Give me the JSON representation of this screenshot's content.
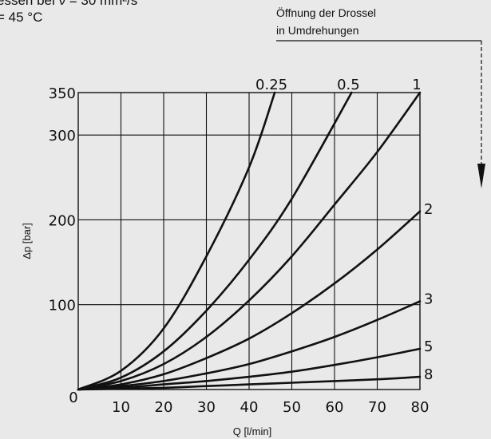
{
  "header": {
    "line1": "essen bei ν = 30 mm²/s",
    "line2": "= 45 °C"
  },
  "annotation": {
    "line1": "Öffnung der Drossel",
    "line2": "in Umdrehungen"
  },
  "chart_data": {
    "type": "line",
    "title": "",
    "xlabel": "Q [l/min]",
    "ylabel": "Δp [bar]",
    "xlim": [
      0,
      80
    ],
    "ylim": [
      0,
      350
    ],
    "x_ticks": [
      0,
      10,
      20,
      30,
      40,
      50,
      60,
      70,
      80
    ],
    "y_ticks": [
      100,
      200,
      300,
      350
    ],
    "grid": true,
    "series": [
      {
        "name": "0.25",
        "x": [
          0,
          10,
          20,
          30,
          40,
          46
        ],
        "y": [
          0,
          22,
          72,
          157,
          262,
          350
        ]
      },
      {
        "name": "0.5",
        "x": [
          0,
          10,
          20,
          30,
          40,
          50,
          64
        ],
        "y": [
          0,
          14,
          45,
          93,
          153,
          225,
          350
        ]
      },
      {
        "name": "1",
        "x": [
          0,
          10,
          20,
          30,
          40,
          50,
          60,
          70,
          80
        ],
        "y": [
          0,
          10,
          30,
          62,
          105,
          157,
          218,
          280,
          350
        ]
      },
      {
        "name": "2",
        "x": [
          0,
          10,
          20,
          30,
          40,
          50,
          60,
          70,
          80
        ],
        "y": [
          0,
          6,
          18,
          37,
          60,
          90,
          125,
          165,
          210
        ]
      },
      {
        "name": "3",
        "x": [
          0,
          10,
          20,
          30,
          40,
          50,
          60,
          70,
          80
        ],
        "y": [
          0,
          4,
          10,
          19,
          30,
          45,
          62,
          82,
          104
        ]
      },
      {
        "name": "5",
        "x": [
          0,
          10,
          20,
          30,
          40,
          50,
          60,
          70,
          80
        ],
        "y": [
          0,
          2,
          6,
          10,
          15,
          21,
          29,
          38,
          48
        ]
      },
      {
        "name": "8",
        "x": [
          0,
          10,
          20,
          30,
          40,
          50,
          60,
          70,
          80
        ],
        "y": [
          0,
          1,
          2,
          4,
          6,
          8,
          10,
          12,
          15
        ]
      }
    ]
  }
}
